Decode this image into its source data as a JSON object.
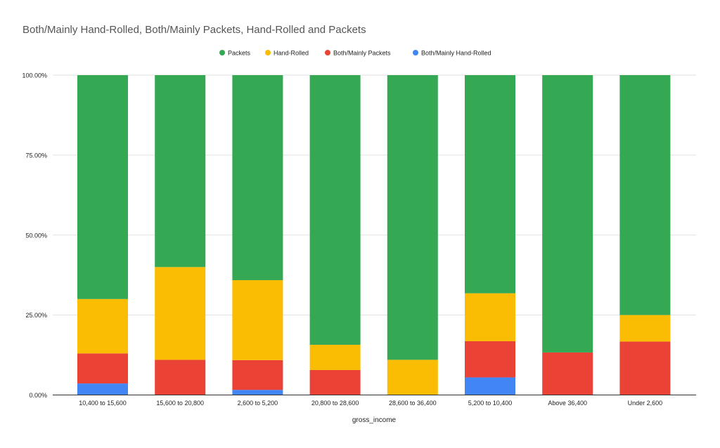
{
  "chart_data": {
    "type": "bar",
    "stacked": true,
    "normalized": true,
    "title": "Both/Mainly Hand-Rolled, Both/Mainly Packets, Hand-Rolled and Packets",
    "xlabel": "gross_income",
    "ylabel": "",
    "ylim": [
      0,
      100
    ],
    "yticks": [
      "0.00%",
      "25.00%",
      "50.00%",
      "75.00%",
      "100.00%"
    ],
    "grid": true,
    "legend_position": "top",
    "categories": [
      "10,400 to 15,600",
      "15,600 to 20,800",
      "2,600 to 5,200",
      "20,800 to 28,600",
      "28,600 to 36,400",
      "5,200 to 10,400",
      "Above 36,400",
      "Under 2,600"
    ],
    "series": [
      {
        "name": "Both/Mainly Hand-Rolled",
        "color": "#4285f4",
        "values": [
          3.6,
          0,
          1.6,
          0,
          0,
          5.5,
          0,
          0
        ]
      },
      {
        "name": "Both/Mainly Packets",
        "color": "#ea4335",
        "values": [
          9.4,
          11.0,
          9.3,
          7.8,
          0,
          11.3,
          13.3,
          16.7
        ]
      },
      {
        "name": "Hand-Rolled",
        "color": "#fbbc04",
        "values": [
          17.0,
          29.0,
          25.0,
          7.9,
          11.0,
          15.0,
          0,
          8.3
        ]
      },
      {
        "name": "Packets",
        "color": "#34a853",
        "values": [
          70.0,
          60.0,
          64.1,
          84.3,
          89.0,
          68.2,
          86.7,
          75.0
        ]
      }
    ],
    "legend_order": [
      "Packets",
      "Hand-Rolled",
      "Both/Mainly Packets",
      "Both/Mainly Hand-Rolled"
    ]
  }
}
